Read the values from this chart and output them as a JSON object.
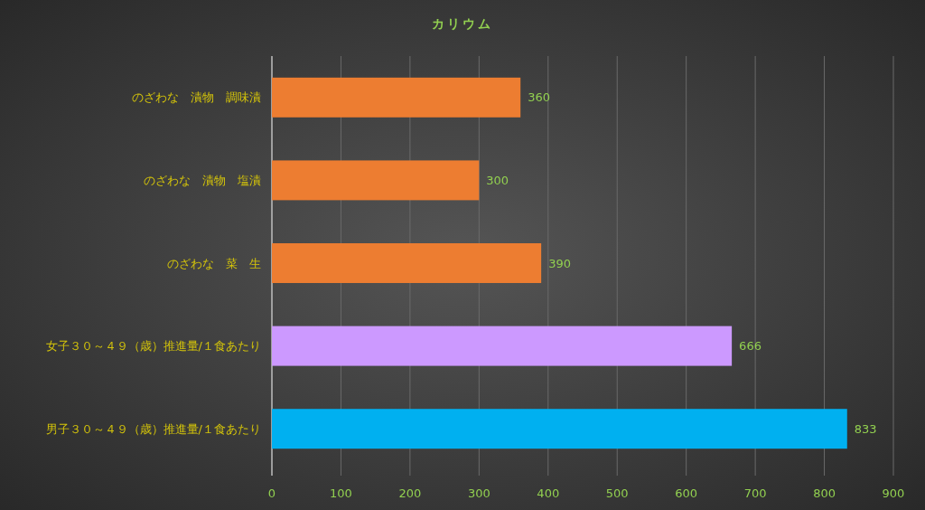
{
  "chart_data": {
    "type": "bar",
    "orientation": "horizontal",
    "title": "カリウム",
    "categories": [
      "のざわな　漬物　調味漬",
      "のざわな　漬物　塩漬",
      "のざわな　菜　生",
      "女子３０～４９（歳）推進量/１食あたり",
      "男子３０～４９（歳）推進量/１食あたり"
    ],
    "values": [
      360,
      300,
      390,
      666,
      833
    ],
    "colors": [
      "#ed7d31",
      "#ed7d31",
      "#ed7d31",
      "#cc99ff",
      "#00b0f0"
    ],
    "xlim": [
      0,
      900
    ],
    "xticks": [
      0,
      100,
      200,
      300,
      400,
      500,
      600,
      700,
      800,
      900
    ],
    "grid": "x",
    "data_labels": true
  }
}
